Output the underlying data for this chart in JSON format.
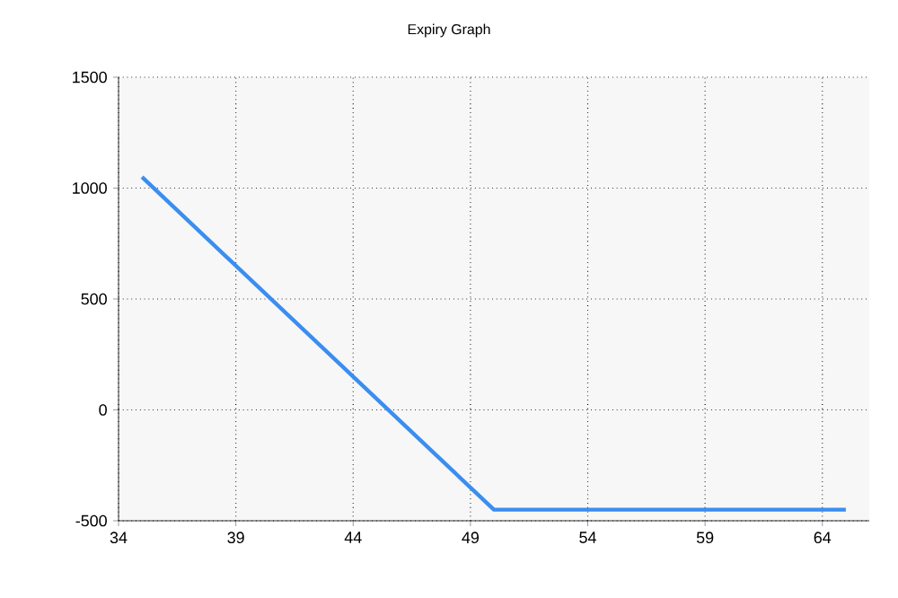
{
  "chart_data": {
    "type": "line",
    "title": "Expiry Graph",
    "series": [
      {
        "color": "#3a8ef0",
        "x": [
          35,
          50,
          65
        ],
        "values": [
          1050,
          -450,
          -450
        ]
      }
    ],
    "xlim": [
      34,
      66
    ],
    "xticks": [
      34,
      39,
      44,
      49,
      54,
      59,
      64
    ],
    "ylim": [
      -500,
      1500
    ],
    "yticks": [
      -500,
      0,
      500,
      1000,
      1500
    ],
    "grid": true,
    "marker": "none",
    "line_style": "solid"
  }
}
